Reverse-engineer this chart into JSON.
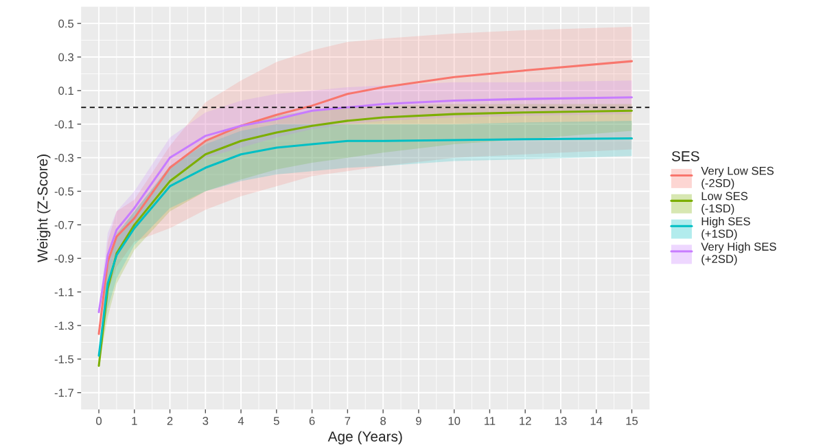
{
  "chart_data": {
    "type": "line",
    "xlabel": "Age (Years)",
    "ylabel": "Weight (Z-Score)",
    "legend_title": "SES",
    "legend": "right",
    "x": [
      0,
      0.25,
      0.5,
      1,
      2,
      3,
      4,
      5,
      6,
      7,
      8,
      10,
      12,
      15
    ],
    "series": [
      {
        "name": "Very Low SES\n(-2SD)",
        "color": "#f8766d",
        "values": [
          -1.35,
          -0.92,
          -0.77,
          -0.66,
          -0.36,
          -0.2,
          -0.11,
          -0.045,
          0.01,
          0.08,
          0.12,
          0.18,
          0.22,
          0.275
        ],
        "lower": [
          -1.35,
          -1.1,
          -0.95,
          -0.8,
          -0.72,
          -0.61,
          -0.53,
          -0.47,
          -0.41,
          -0.38,
          -0.35,
          -0.3,
          -0.28,
          -0.25
        ],
        "upper": [
          -1.35,
          -0.8,
          -0.62,
          -0.55,
          -0.23,
          0.03,
          0.16,
          0.27,
          0.34,
          0.39,
          0.41,
          0.44,
          0.46,
          0.48
        ]
      },
      {
        "name": "Low SES\n(-1SD)",
        "color": "#7cae00",
        "values": [
          -1.54,
          -1.08,
          -0.87,
          -0.7,
          -0.44,
          -0.28,
          -0.2,
          -0.15,
          -0.11,
          -0.08,
          -0.06,
          -0.04,
          -0.03,
          -0.02
        ],
        "lower": [
          -1.54,
          -1.25,
          -1.05,
          -0.85,
          -0.62,
          -0.5,
          -0.43,
          -0.37,
          -0.33,
          -0.3,
          -0.27,
          -0.22,
          -0.19,
          -0.14
        ],
        "upper": [
          -1.54,
          -0.9,
          -0.75,
          -0.62,
          -0.35,
          -0.2,
          -0.11,
          -0.05,
          -0.02,
          0.0,
          0.01,
          0.02,
          0.02,
          0.02
        ]
      },
      {
        "name": "High SES\n(+1SD)",
        "color": "#00bfc4",
        "values": [
          -1.48,
          -1.05,
          -0.88,
          -0.72,
          -0.47,
          -0.36,
          -0.28,
          -0.24,
          -0.22,
          -0.2,
          -0.2,
          -0.195,
          -0.19,
          -0.185
        ],
        "lower": [
          -1.48,
          -1.2,
          -1.02,
          -0.82,
          -0.6,
          -0.5,
          -0.44,
          -0.4,
          -0.38,
          -0.36,
          -0.35,
          -0.32,
          -0.31,
          -0.29
        ],
        "upper": [
          -1.48,
          -0.92,
          -0.76,
          -0.62,
          -0.35,
          -0.22,
          -0.14,
          -0.1,
          -0.1,
          -0.1,
          -0.1,
          -0.1,
          -0.09,
          -0.08
        ]
      },
      {
        "name": "Very High SES\n(+2SD)",
        "color": "#c77cff",
        "values": [
          -1.22,
          -0.88,
          -0.73,
          -0.6,
          -0.3,
          -0.17,
          -0.11,
          -0.07,
          -0.02,
          0.0,
          0.02,
          0.04,
          0.05,
          0.06
        ],
        "lower": [
          -1.22,
          -1.0,
          -0.85,
          -0.7,
          -0.42,
          -0.3,
          -0.24,
          -0.18,
          -0.13,
          -0.1,
          -0.08,
          -0.06,
          -0.05,
          -0.04
        ],
        "upper": [
          -1.22,
          -0.75,
          -0.62,
          -0.5,
          -0.18,
          -0.03,
          0.04,
          0.08,
          0.1,
          0.12,
          0.13,
          0.15,
          0.15,
          0.16
        ]
      }
    ],
    "ref_lines": [
      {
        "axis": "y",
        "value": 0,
        "color": "#000000",
        "line_style": "dashed"
      }
    ],
    "xlim": [
      -0.5,
      15.5
    ],
    "ylim": [
      -1.8,
      0.6
    ],
    "xticks": [
      0,
      1,
      2,
      3,
      4,
      5,
      6,
      7,
      8,
      9,
      10,
      11,
      12,
      13,
      14,
      15
    ],
    "yticks": [
      {
        "value": -1.7,
        "label": "-1.7"
      },
      {
        "value": -1.5,
        "label": "-1.5"
      },
      {
        "value": -1.3,
        "label": "-1.3"
      },
      {
        "value": -1.1,
        "label": "-1.1"
      },
      {
        "value": -0.9,
        "label": "-0.9"
      },
      {
        "value": -0.7,
        "label": "-0.7"
      },
      {
        "value": -0.5,
        "label": "-0.5"
      },
      {
        "value": -0.3,
        "label": "-0.3"
      },
      {
        "value": -0.1,
        "label": "-0.1"
      },
      0.1,
      0.3,
      0.5
    ],
    "grid": true,
    "line_style": "solid"
  }
}
